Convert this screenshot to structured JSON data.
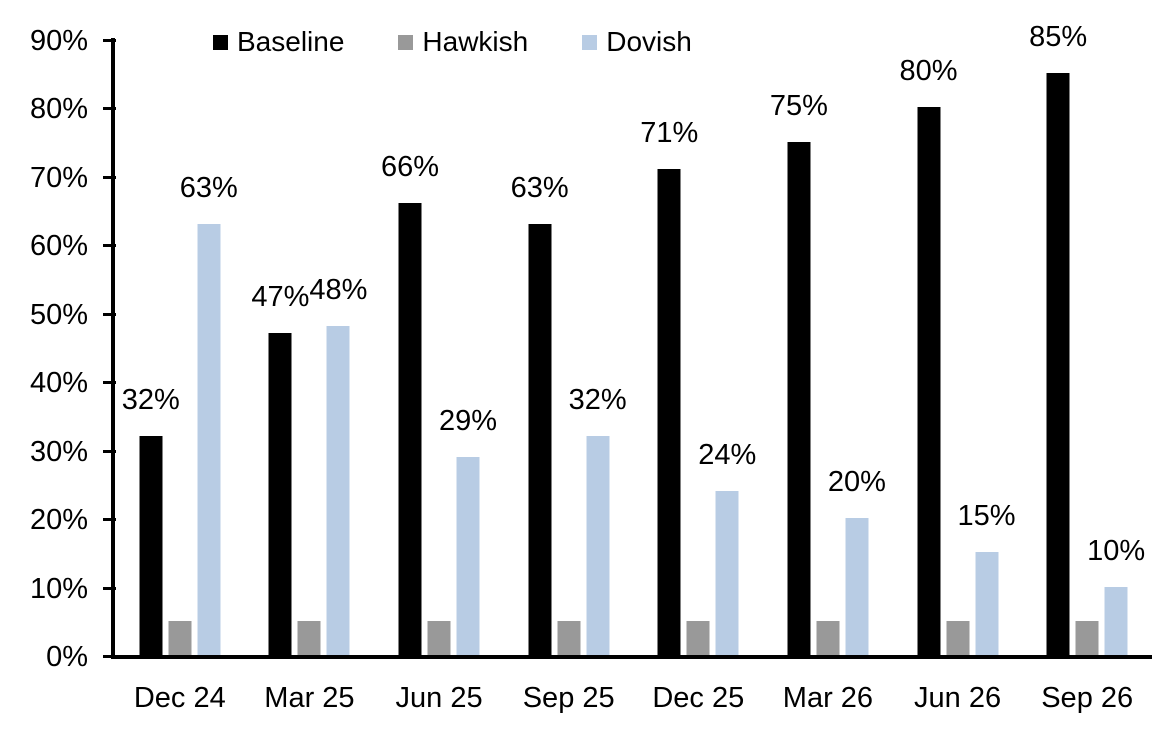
{
  "chart_data": {
    "type": "bar",
    "title": "",
    "xlabel": "",
    "ylabel": "",
    "categories": [
      "Dec 24",
      "Mar 25",
      "Jun 25",
      "Sep 25",
      "Dec 25",
      "Mar 26",
      "Jun 26",
      "Sep 26"
    ],
    "series": [
      {
        "name": "Baseline",
        "color": "#000000",
        "values": [
          32,
          47,
          66,
          63,
          71,
          75,
          80,
          85
        ],
        "labels": [
          "32%",
          "47%",
          "66%",
          "63%",
          "71%",
          "75%",
          "80%",
          "85%"
        ]
      },
      {
        "name": "Hawkish",
        "color": "#999999",
        "values": [
          5,
          5,
          5,
          5,
          5,
          5,
          5,
          5
        ],
        "labels": [
          "",
          "",
          "",
          "",
          "",
          "",
          "",
          ""
        ]
      },
      {
        "name": "Dovish",
        "color": "#B8CCE4",
        "values": [
          63,
          48,
          29,
          32,
          24,
          20,
          15,
          10
        ],
        "labels": [
          "63%",
          "48%",
          "29%",
          "32%",
          "24%",
          "20%",
          "15%",
          "10%"
        ]
      }
    ],
    "ylim": [
      0,
      90
    ],
    "ytick_step": 10,
    "ytick_labels": [
      "0%",
      "10%",
      "20%",
      "30%",
      "40%",
      "50%",
      "60%",
      "70%",
      "80%",
      "90%"
    ],
    "grid": false,
    "legend_position": "top",
    "axis_color": "#000000",
    "background_color": "#FFFFFF"
  }
}
